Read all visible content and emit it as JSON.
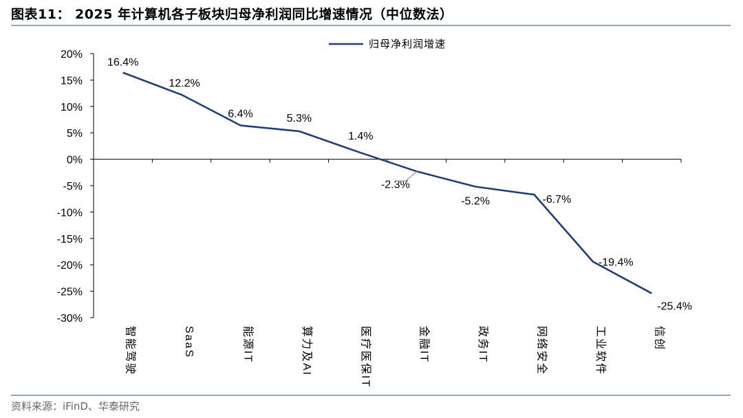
{
  "header": {
    "title": "图表11： 2025 年计算机各子板块归母净利润同比增速情况（中位数法）"
  },
  "footer": {
    "source": "资料来源：iFinD、华泰研究"
  },
  "colors": {
    "line": "#1f3f7a",
    "axis": "#000000",
    "rule": "#8fa6c9",
    "leader": "#a0a0a0"
  },
  "chart_data": {
    "type": "line",
    "title": "",
    "xlabel": "",
    "ylabel": "",
    "categories": [
      "智能驾驶",
      "SaaS",
      "能源IT",
      "算力及AI",
      "医疗医保IT",
      "金融IT",
      "政务IT",
      "网络安全",
      "工业软件",
      "信创"
    ],
    "series": [
      {
        "name": "归母净利润增速",
        "values": [
          16.4,
          12.2,
          6.4,
          5.3,
          1.4,
          -2.3,
          -5.2,
          -6.7,
          -19.4,
          -25.4
        ]
      }
    ],
    "data_labels": [
      "16.4%",
      "12.2%",
      "6.4%",
      "5.3%",
      "1.4%",
      "-2.3%",
      "-5.2%",
      "-6.7%",
      "-19.4%",
      "-25.4%"
    ],
    "y_ticks": [
      20,
      15,
      10,
      5,
      0,
      -5,
      -10,
      -15,
      -20,
      -25,
      -30
    ],
    "y_tick_labels": [
      "20%",
      "15%",
      "10%",
      "5%",
      "0%",
      "-5%",
      "-10%",
      "-15%",
      "-20%",
      "-25%",
      "-30%"
    ],
    "ylim": [
      -30,
      20
    ],
    "legend": "top-center",
    "grid": false
  }
}
